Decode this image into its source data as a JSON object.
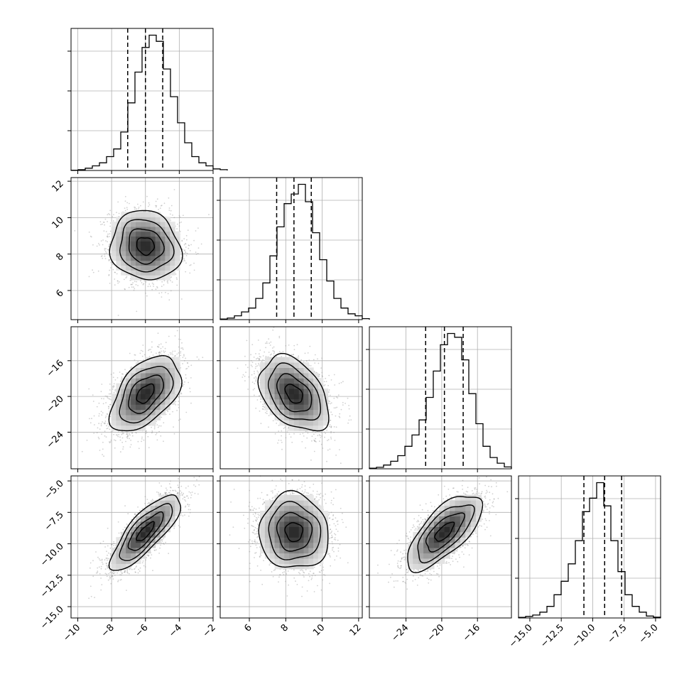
{
  "chart_data": {
    "type": "corner",
    "grid": true,
    "parameters": [
      {
        "range": [
          -10.4,
          -2.0
        ],
        "ticks": [
          -10,
          -8,
          -6,
          -4,
          -2
        ],
        "tick_labels": [
          "−10",
          "−8",
          "−6",
          "−4",
          "−2"
        ],
        "quantiles": [
          -7.05,
          -6.0,
          -4.98
        ],
        "hist_bins_start": -10.4,
        "hist_bins_width": 0.42,
        "hist_counts": [
          0.2,
          0.5,
          1.5,
          3,
          5,
          9,
          14,
          25,
          44,
          64,
          80,
          88,
          84,
          66,
          48,
          31,
          18,
          9,
          5,
          3,
          1,
          0.5
        ]
      },
      {
        "range": [
          4.4,
          12.2
        ],
        "ticks": [
          6,
          8,
          10,
          12
        ],
        "tick_labels": [
          "6",
          "8",
          "10",
          "12"
        ],
        "quantiles": [
          7.5,
          8.45,
          9.4
        ],
        "hist_bins_start": 4.4,
        "hist_bins_width": 0.39,
        "hist_counts": [
          0.3,
          0.8,
          2,
          4,
          6,
          11,
          19,
          33,
          48,
          60,
          65,
          70,
          61,
          45,
          31,
          20,
          11,
          6,
          3,
          2,
          0.5
        ]
      },
      {
        "range": [
          -28.1,
          -12.2
        ],
        "ticks": [
          -24,
          -20,
          -16
        ],
        "tick_labels": [
          "−24",
          "−20",
          "−16"
        ],
        "quantiles": [
          -21.8,
          -19.7,
          -17.6
        ],
        "hist_bins_start": -28.1,
        "hist_bins_width": 0.795,
        "hist_counts": [
          0.3,
          0.8,
          2,
          4,
          7,
          12,
          18,
          26,
          38,
          52,
          66,
          72,
          70,
          58,
          40,
          24,
          12,
          6,
          3,
          1
        ]
      },
      {
        "range": [
          -15.9,
          -4.6
        ],
        "ticks": [
          -15.0,
          -12.5,
          -10.0,
          -7.5,
          -5.0
        ],
        "tick_labels": [
          "−15.0",
          "−12.5",
          "−10.0",
          "−7.5",
          "−5.0"
        ],
        "quantiles": [
          -10.7,
          -9.05,
          -7.7
        ],
        "hist_bins_start": -15.9,
        "hist_bins_width": 0.565,
        "hist_counts": [
          0.3,
          0.8,
          1.5,
          3,
          6,
          12,
          19,
          28,
          40,
          55,
          62,
          70,
          58,
          40,
          24,
          12,
          6,
          3,
          1,
          0.4
        ]
      }
    ],
    "correlations": {
      "1-0": -0.1,
      "2-0": 0.5,
      "2-1": -0.4,
      "3-0": 0.8,
      "3-1": -0.05,
      "3-2": 0.7
    },
    "sample_count_shown": 2500
  }
}
